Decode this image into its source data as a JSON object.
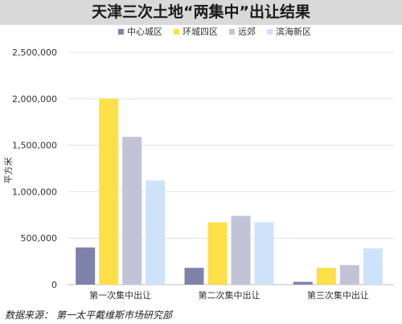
{
  "title": "天津三次土地“两集中”出让结果",
  "source": {
    "label": "数据来源：",
    "text": "第一太平戴维斯市场研究部"
  },
  "chart_data": {
    "type": "bar",
    "title": "天津三次土地“两集中”出让结果",
    "ylabel": "平方米",
    "xlabel": "",
    "ylim": [
      0,
      2500000
    ],
    "yticks": [
      0,
      500000,
      1000000,
      1500000,
      2000000,
      2500000
    ],
    "ytick_labels": [
      "0",
      "500,000",
      "1,000,000",
      "1,500,000",
      "2,000,000",
      "2,500,000"
    ],
    "categories": [
      "第一次集中出让",
      "第二次集中出让",
      "第三次集中出让"
    ],
    "series": [
      {
        "name": "中心城区",
        "color": "#7f82a8",
        "values": [
          400000,
          180000,
          30000
        ]
      },
      {
        "name": "环城四区",
        "color": "#fde047",
        "values": [
          2000000,
          670000,
          180000
        ]
      },
      {
        "name": "远郊",
        "color": "#c3c3d8",
        "values": [
          1590000,
          740000,
          210000
        ]
      },
      {
        "name": "滨海新区",
        "color": "#cfe2fb",
        "values": [
          1120000,
          670000,
          390000
        ]
      }
    ],
    "grid": true,
    "legend": "top"
  }
}
